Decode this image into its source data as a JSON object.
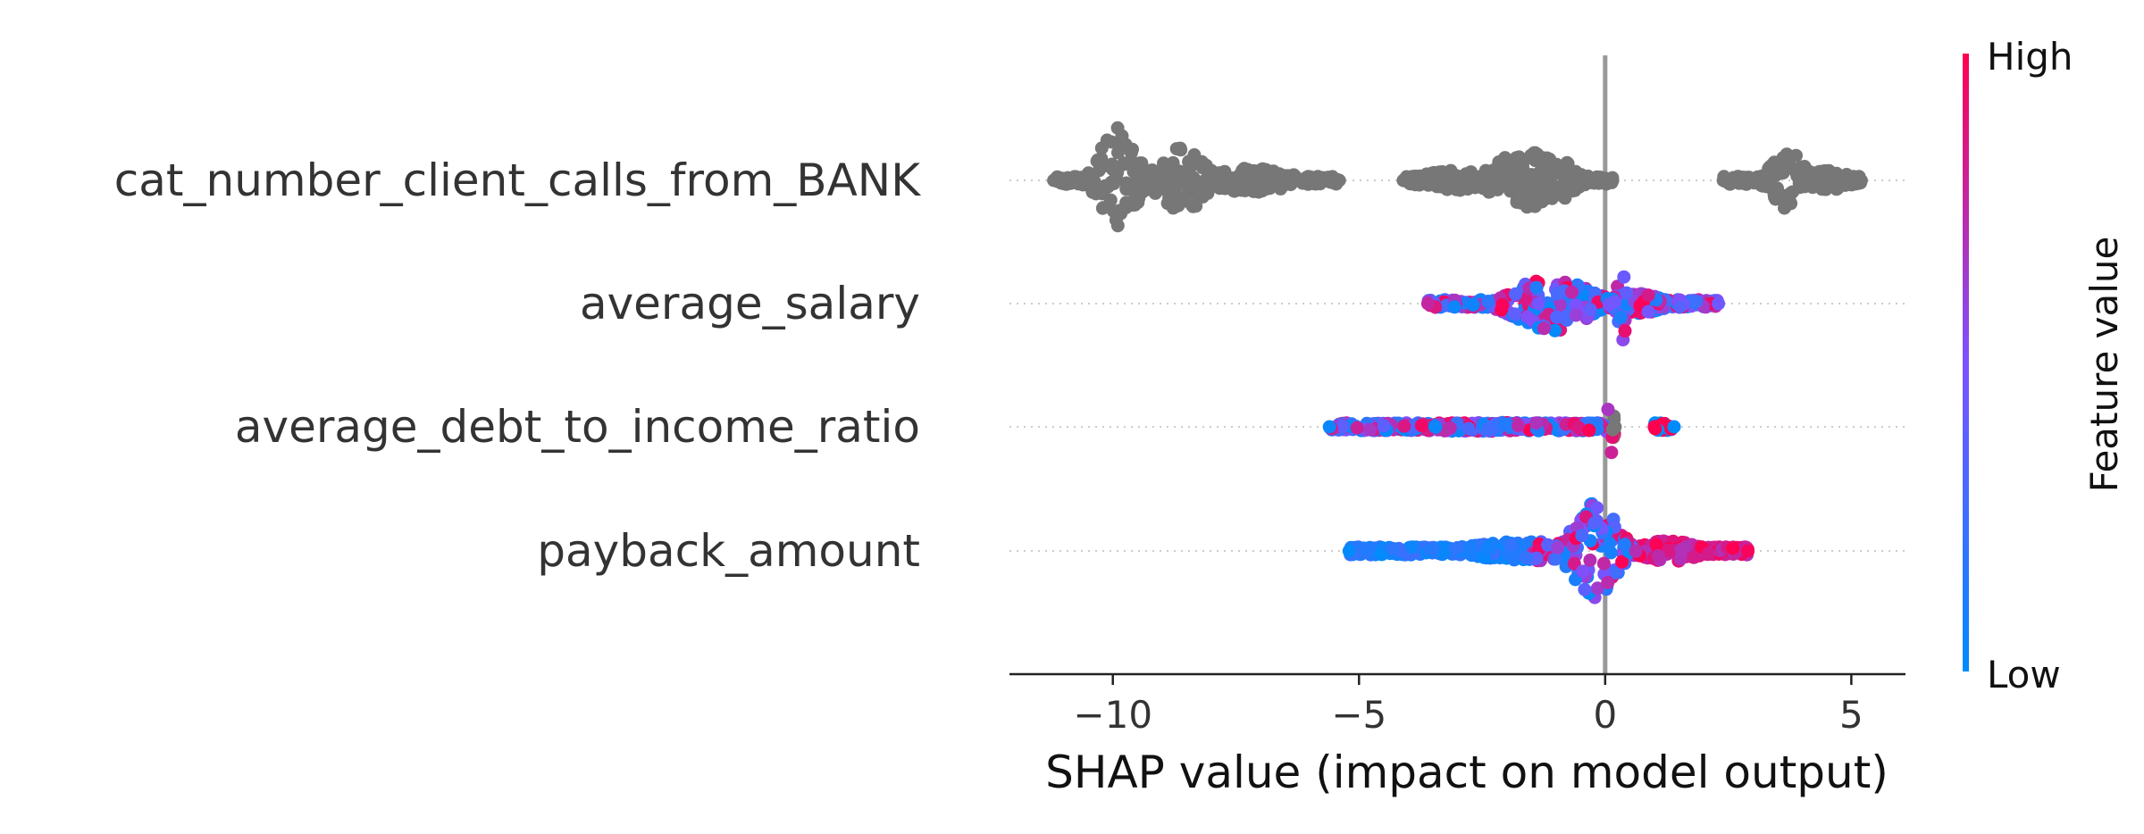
{
  "chart_data": {
    "type": "scatter",
    "subtype": "shap-beeswarm-summary",
    "xlabel": "SHAP value (impact on model output)",
    "xlim": [
      -12.1,
      6.1
    ],
    "x_ticks": [
      -10,
      -5,
      0,
      5
    ],
    "x_tick_labels": [
      "−10",
      "−5",
      "0",
      "5"
    ],
    "zero_line": 0,
    "features": [
      {
        "name": "cat_number_client_calls_from_BANK",
        "color_mode": "gray",
        "clusters": [
          {
            "min": -11.2,
            "max": -5.4,
            "peaks": [
              {
                "x": -9.9,
                "w": 0.45,
                "h": 1.0
              },
              {
                "x": -8.6,
                "w": 0.55,
                "h": 0.62
              },
              {
                "x": -7.2,
                "w": 1.0,
                "h": 0.22
              }
            ]
          },
          {
            "min": -4.1,
            "max": 0.15,
            "peaks": [
              {
                "x": -1.6,
                "w": 0.9,
                "h": 0.52
              },
              {
                "x": -0.8,
                "w": 0.25,
                "h": 0.35
              },
              {
                "x": -3.0,
                "w": 1.0,
                "h": 0.18
              }
            ]
          },
          {
            "min": 2.4,
            "max": 5.2,
            "peaks": [
              {
                "x": 3.7,
                "w": 0.4,
                "h": 0.55
              },
              {
                "x": 4.5,
                "w": 0.6,
                "h": 0.18
              }
            ]
          }
        ]
      },
      {
        "name": "average_salary",
        "color_mode": "mixed",
        "clusters": [
          {
            "min": -3.6,
            "max": 2.3,
            "peaks": [
              {
                "x": -1.1,
                "w": 0.9,
                "h": 0.52
              },
              {
                "x": 0.35,
                "w": 0.12,
                "h": 0.7
              },
              {
                "x": 0.7,
                "w": 0.6,
                "h": 0.18
              }
            ]
          }
        ]
      },
      {
        "name": "average_debt_to_income_ratio",
        "color_mode": "mixed-left",
        "clusters": [
          {
            "min": -5.6,
            "max": 0.2,
            "peaks": [
              {
                "x": -2.5,
                "w": 3.0,
                "h": 0.08
              },
              {
                "x": 0.1,
                "w": 0.08,
                "h": 0.62
              }
            ]
          },
          {
            "min": 1.0,
            "max": 1.4,
            "peaks": []
          }
        ]
      },
      {
        "name": "payback_amount",
        "color_mode": "mixed-right-high",
        "clusters": [
          {
            "min": -5.2,
            "max": 2.9,
            "peaks": [
              {
                "x": -0.2,
                "w": 0.55,
                "h": 0.9
              },
              {
                "x": -1.5,
                "w": 1.5,
                "h": 0.18
              },
              {
                "x": 1.3,
                "w": 0.7,
                "h": 0.2
              }
            ]
          }
        ]
      }
    ],
    "colorbar": {
      "label": "Feature value",
      "high_label": "High",
      "low_label": "Low",
      "low_color": "#008bfb",
      "high_color": "#ff0051"
    },
    "colors": {
      "gray": "#777777",
      "axis": "#222222",
      "zero_line": "#999999",
      "grid": "#cccccc",
      "text": "#333333"
    }
  }
}
